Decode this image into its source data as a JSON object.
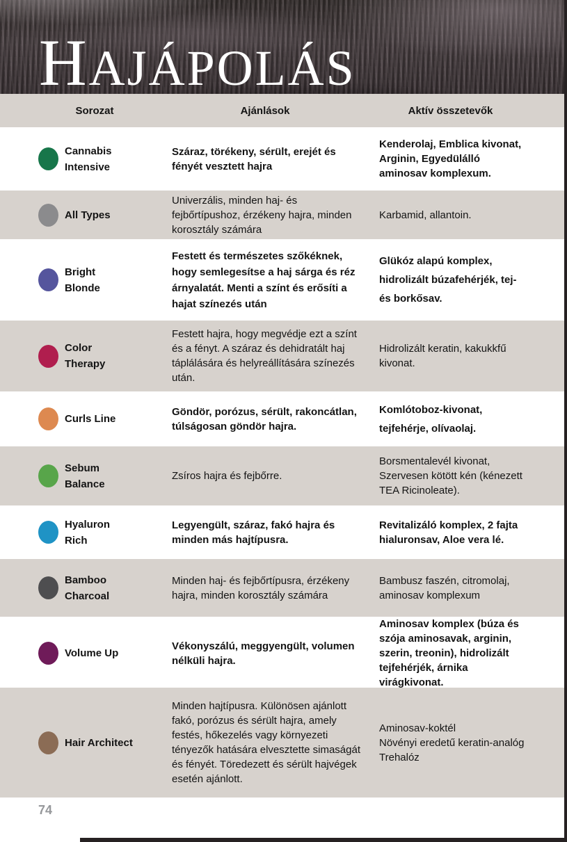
{
  "page": {
    "title": "Hajápolás",
    "page_number": "74"
  },
  "table": {
    "headers": [
      "Sorozat",
      "Ajánlások",
      "Aktív összetevők"
    ],
    "rows": [
      {
        "name": "Cannabis\nIntensive",
        "dot_color": "#17764a",
        "recommendation": "Száraz, törékeny, sérült, erejét és fényét vesztett hajra",
        "ingredients": "Kenderolaj, Emblica kivonat, Arginin, Egyedülálló aminosav komplexum."
      },
      {
        "name": "All Types",
        "dot_color": "#8b8b8d",
        "recommendation": "Univerzális, minden haj- és fejbőrtípushoz, érzékeny hajra, minden korosztály számára",
        "ingredients": "Karbamid, allantoin."
      },
      {
        "name": "Bright\nBlonde",
        "dot_color": "#55559d",
        "recommendation": "Festett és természetes szőkéknek, hogy semlegesítse a haj sárga és réz árnyalatát. Menti a színt és erősíti a hajat színezés után",
        "ingredients": "Glükóz alapú komplex, hidrolizált búzafehérjék, tej- és borkősav."
      },
      {
        "name": "Color\nTherapy",
        "dot_color": "#b01e4e",
        "recommendation": "Festett hajra, hogy megvédje ezt a színt és a fényt. A száraz és dehidratált haj táplálására és helyreállítására színezés után.",
        "ingredients": "Hidrolizált keratin, kakukkfű kivonat."
      },
      {
        "name": "Curls Line",
        "dot_color": "#dd8950",
        "recommendation": "Göndör, porózus, sérült, rakoncátlan, túlságosan göndör hajra.",
        "ingredients": "Komlótoboz-kivonat, tejfehérje, olívaolaj."
      },
      {
        "name": "Sebum\nBalance",
        "dot_color": "#58a54a",
        "recommendation": "Zsíros hajra és fejbőrre.",
        "ingredients": "Borsmentalevél kivonat, Szervesen kötött kén (kénezett TEA Ricinoleate)."
      },
      {
        "name": "Hyaluron\nRich",
        "dot_color": "#1f93c5",
        "recommendation": "Legyengült, száraz, fakó hajra és minden más hajtípusra.",
        "ingredients": "Revitalizáló komplex, 2 fajta hialuronsav, Aloe vera lé."
      },
      {
        "name": "Bamboo\nCharcoal",
        "dot_color": "#4e4e50",
        "recommendation": "Minden haj- és fejbőrtípusra, érzékeny hajra, minden korosztály számára",
        "ingredients": "Bambusz faszén, citromolaj, aminosav komplexum"
      },
      {
        "name": "Volume Up",
        "dot_color": "#6f1b59",
        "recommendation": "Vékonyszálú, meggyengült, volumen nélküli hajra.",
        "ingredients": "Aminosav komplex (búza és szója aminosavak, arginin, szerin, treonin), hidrolizált tejfehérjék, árnika virágkivonat."
      },
      {
        "name": "Hair Architect",
        "dot_color": "#8b6c55",
        "recommendation": "Minden hajtípusra. Különösen ajánlott fakó, porózus és sérült hajra, amely festés, hőkezelés vagy környezeti tényezők hatására elvesztette simaságát és fényét. Töredezett  és sérült hajvégek esetén ajánlott.",
        "ingredients": "Aminosav-koktél\nNövényi eredetű keratin-analóg\nTrehalóz"
      }
    ]
  }
}
